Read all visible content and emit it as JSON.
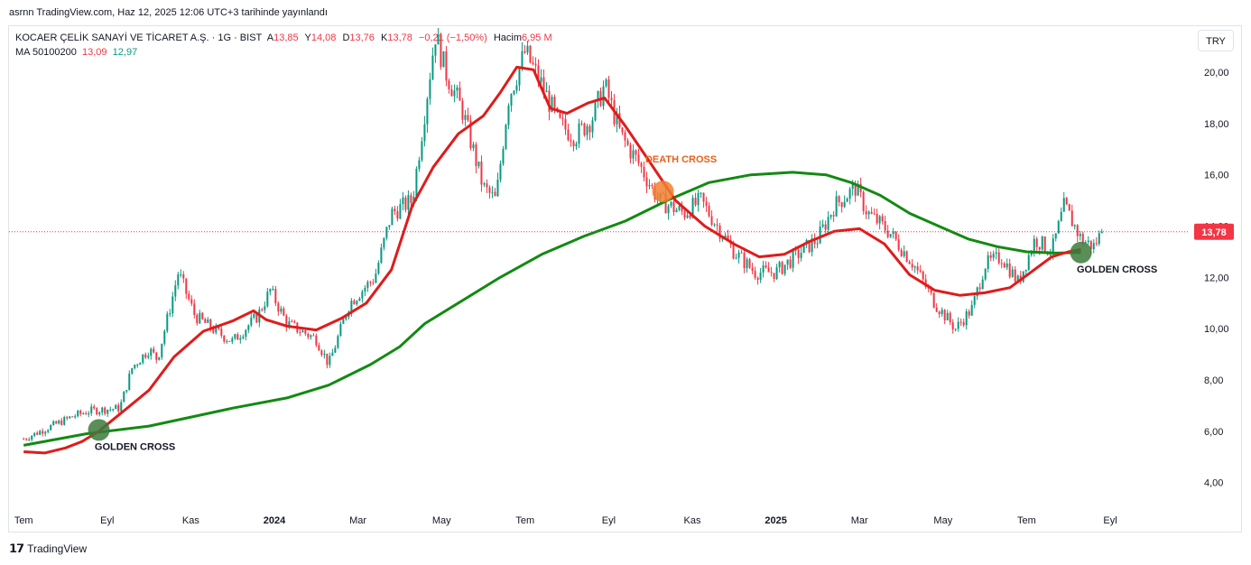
{
  "header": {
    "published": "asrnn TradingView.com, Haz 12, 2025 12:06 UTC+3 tarihinde yayınlandı"
  },
  "legend": {
    "symbol": "KOCAER ÇELİK SANAYİ VE TİCARET A.Ş. · 1G · BIST",
    "open_label": "A",
    "open": "13,85",
    "high_label": "Y",
    "high": "14,08",
    "low_label": "D",
    "low": "13,76",
    "close_label": "K",
    "close": "13,78",
    "change": "−0,21 (−1,50%)",
    "volume_label": "Hacim",
    "volume": "6,95 M",
    "ma_label": "MA 50100200",
    "ma_fast": "13,09",
    "ma_slow": "12,97"
  },
  "currency": "TRY",
  "price_tag": "13,78",
  "brand": {
    "name": "TradingView",
    "logo": "tradingview-logo-icon"
  },
  "colors": {
    "up": "#089981",
    "down": "#f23645",
    "ma_fast": "#e01b1b",
    "ma_slow": "#128a12",
    "death": "#f08030",
    "golden": "#3c7a3c",
    "price_line": "#f23645"
  },
  "chart_data": {
    "type": "candlestick",
    "y_ticks": [
      "4,00",
      "6,00",
      "8,00",
      "10,00",
      "12,00",
      "14,00",
      "16,00",
      "18,00",
      "20,00"
    ],
    "ylim": [
      3.0,
      21.8
    ],
    "x_ticks": [
      {
        "label": "Tem",
        "bold": false
      },
      {
        "label": "Eyl",
        "bold": false
      },
      {
        "label": "Kas",
        "bold": false
      },
      {
        "label": "2024",
        "bold": true
      },
      {
        "label": "Mar",
        "bold": false
      },
      {
        "label": "May",
        "bold": false
      },
      {
        "label": "Tem",
        "bold": false
      },
      {
        "label": "Eyl",
        "bold": false
      },
      {
        "label": "Kas",
        "bold": false
      },
      {
        "label": "2025",
        "bold": true
      },
      {
        "label": "Mar",
        "bold": false
      },
      {
        "label": "May",
        "bold": false
      },
      {
        "label": "Tem",
        "bold": false
      },
      {
        "label": "Eyl",
        "bold": false
      }
    ],
    "x_tick_months": [
      0,
      2,
      4,
      6,
      8,
      10,
      12,
      14,
      16,
      18,
      20,
      22,
      24,
      26
    ],
    "x_range_months": [
      -0.35,
      27.9
    ],
    "price_keypoints": [
      [
        0,
        5.7
      ],
      [
        1.2,
        6.6
      ],
      [
        1.6,
        6.8
      ],
      [
        2.3,
        6.9
      ],
      [
        2.6,
        8.5
      ],
      [
        3.0,
        9.2
      ],
      [
        3.2,
        8.8
      ],
      [
        3.5,
        10.8
      ],
      [
        3.7,
        12.2
      ],
      [
        4.1,
        10.5
      ],
      [
        4.6,
        9.9
      ],
      [
        5.0,
        9.5
      ],
      [
        5.6,
        10.5
      ],
      [
        5.9,
        11.5
      ],
      [
        6.3,
        10.2
      ],
      [
        7.0,
        9.6
      ],
      [
        7.3,
        8.6
      ],
      [
        7.8,
        11.0
      ],
      [
        8.4,
        12.0
      ],
      [
        8.8,
        14.5
      ],
      [
        9.3,
        15.0
      ],
      [
        9.6,
        18.5
      ],
      [
        9.85,
        21.5
      ],
      [
        10.1,
        20.0
      ],
      [
        10.5,
        18.5
      ],
      [
        11.0,
        15.5
      ],
      [
        11.3,
        15.0
      ],
      [
        11.6,
        19.0
      ],
      [
        12.0,
        20.8
      ],
      [
        12.4,
        19.5
      ],
      [
        12.8,
        18.0
      ],
      [
        13.2,
        17.5
      ],
      [
        13.6,
        18.2
      ],
      [
        13.9,
        19.5
      ],
      [
        14.3,
        17.5
      ],
      [
        14.7,
        16.5
      ],
      [
        15.2,
        15.0
      ],
      [
        15.8,
        14.5
      ],
      [
        16.2,
        15.0
      ],
      [
        16.6,
        14.0
      ],
      [
        17.0,
        13.0
      ],
      [
        17.5,
        12.2
      ],
      [
        18.0,
        12.2
      ],
      [
        18.6,
        13.0
      ],
      [
        19.0,
        13.5
      ],
      [
        19.4,
        14.8
      ],
      [
        19.9,
        15.5
      ],
      [
        20.2,
        14.5
      ],
      [
        20.7,
        13.8
      ],
      [
        21.3,
        12.5
      ],
      [
        21.8,
        11.0
      ],
      [
        22.3,
        10.0
      ],
      [
        22.7,
        10.8
      ],
      [
        23.0,
        12.5
      ],
      [
        23.4,
        12.8
      ],
      [
        23.8,
        11.8
      ],
      [
        24.2,
        13.5
      ],
      [
        24.6,
        13.0
      ],
      [
        24.9,
        14.8
      ],
      [
        25.3,
        13.5
      ],
      [
        25.6,
        13.2
      ],
      [
        25.8,
        13.78
      ]
    ],
    "ma_fast_points": [
      [
        0,
        5.2
      ],
      [
        0.5,
        5.15
      ],
      [
        1.0,
        5.35
      ],
      [
        1.4,
        5.6
      ],
      [
        1.8,
        6.0
      ],
      [
        2.4,
        6.8
      ],
      [
        3.0,
        7.6
      ],
      [
        3.6,
        8.9
      ],
      [
        4.3,
        9.9
      ],
      [
        5.0,
        10.3
      ],
      [
        5.5,
        10.7
      ],
      [
        5.8,
        10.35
      ],
      [
        6.3,
        10.1
      ],
      [
        7.0,
        9.95
      ],
      [
        7.6,
        10.4
      ],
      [
        8.2,
        11.0
      ],
      [
        8.8,
        12.3
      ],
      [
        9.3,
        14.8
      ],
      [
        9.8,
        16.3
      ],
      [
        10.4,
        17.6
      ],
      [
        11.0,
        18.3
      ],
      [
        11.4,
        19.2
      ],
      [
        11.8,
        20.2
      ],
      [
        12.2,
        20.1
      ],
      [
        12.6,
        18.6
      ],
      [
        13.0,
        18.4
      ],
      [
        13.5,
        18.8
      ],
      [
        13.9,
        19.0
      ],
      [
        14.4,
        17.9
      ],
      [
        14.9,
        16.7
      ],
      [
        15.6,
        15.0
      ],
      [
        16.3,
        14.0
      ],
      [
        17.0,
        13.3
      ],
      [
        17.6,
        12.8
      ],
      [
        18.2,
        12.9
      ],
      [
        18.8,
        13.4
      ],
      [
        19.4,
        13.8
      ],
      [
        20.0,
        13.9
      ],
      [
        20.6,
        13.3
      ],
      [
        21.2,
        12.1
      ],
      [
        21.8,
        11.5
      ],
      [
        22.4,
        11.3
      ],
      [
        23.0,
        11.4
      ],
      [
        23.6,
        11.6
      ],
      [
        24.1,
        12.2
      ],
      [
        24.6,
        12.8
      ],
      [
        25.0,
        13.0
      ],
      [
        25.3,
        13.09
      ]
    ],
    "ma_slow_points": [
      [
        0,
        5.45
      ],
      [
        1.5,
        5.9
      ],
      [
        3.0,
        6.2
      ],
      [
        5.0,
        6.9
      ],
      [
        6.3,
        7.3
      ],
      [
        7.3,
        7.8
      ],
      [
        8.3,
        8.6
      ],
      [
        9.0,
        9.3
      ],
      [
        9.6,
        10.2
      ],
      [
        10.4,
        11.0
      ],
      [
        11.4,
        12.0
      ],
      [
        12.4,
        12.9
      ],
      [
        13.4,
        13.6
      ],
      [
        14.4,
        14.2
      ],
      [
        15.4,
        15.0
      ],
      [
        16.4,
        15.7
      ],
      [
        17.4,
        16.0
      ],
      [
        18.4,
        16.1
      ],
      [
        19.2,
        16.0
      ],
      [
        19.8,
        15.7
      ],
      [
        20.5,
        15.2
      ],
      [
        21.2,
        14.5
      ],
      [
        21.9,
        14.0
      ],
      [
        22.6,
        13.5
      ],
      [
        23.3,
        13.2
      ],
      [
        24.0,
        13.0
      ],
      [
        24.7,
        12.95
      ],
      [
        25.3,
        12.97
      ]
    ],
    "annotations": [
      {
        "label": "GOLDEN CROSS",
        "x": 1.8,
        "y": 6.05,
        "kind": "golden",
        "label_pos": "below"
      },
      {
        "label": "DEATH CROSS",
        "x": 15.3,
        "y": 15.35,
        "kind": "death",
        "label_pos": "above"
      },
      {
        "label": "GOLDEN CROSS",
        "x": 25.3,
        "y": 12.97,
        "kind": "golden",
        "label_pos": "below"
      }
    ],
    "last_price": 13.78
  }
}
